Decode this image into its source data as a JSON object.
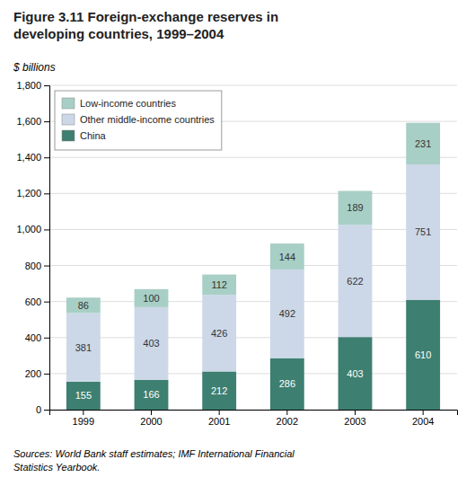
{
  "chart_data": {
    "type": "bar",
    "title": "Figure 3.11  Foreign-exchange reserves in\ndeveloping countries, 1999–2004",
    "y_label": "$ billions",
    "annotations": [
      "Sources: World Bank staff estimates; IMF International Financial\nStatistics Yearbook."
    ],
    "categories": [
      "1999",
      "2000",
      "2001",
      "2002",
      "2003",
      "2004"
    ],
    "series": [
      {
        "name": "China",
        "color": "#3d7f70",
        "values": [
          155,
          166,
          212,
          286,
          403,
          610
        ]
      },
      {
        "name": "Other middle-income countries",
        "color": "#ccd8e8",
        "values": [
          381,
          403,
          426,
          492,
          622,
          751
        ]
      },
      {
        "name": "Low-income countries",
        "color": "#a8cfc5",
        "values": [
          86,
          100,
          112,
          144,
          189,
          231
        ]
      }
    ],
    "stacked": true,
    "data_labels": true,
    "ylim": [
      0,
      1800
    ],
    "yticks": [
      0,
      200,
      400,
      600,
      800,
      {
        "value": 1000,
        "label": "1,000"
      },
      {
        "value": 1200,
        "label": "1,200"
      },
      {
        "value": 1400,
        "label": "1,400"
      },
      {
        "value": 1600,
        "label": "1,600"
      },
      {
        "value": 1800,
        "label": "1,800"
      }
    ],
    "grid": true,
    "legend": "upper-left"
  }
}
